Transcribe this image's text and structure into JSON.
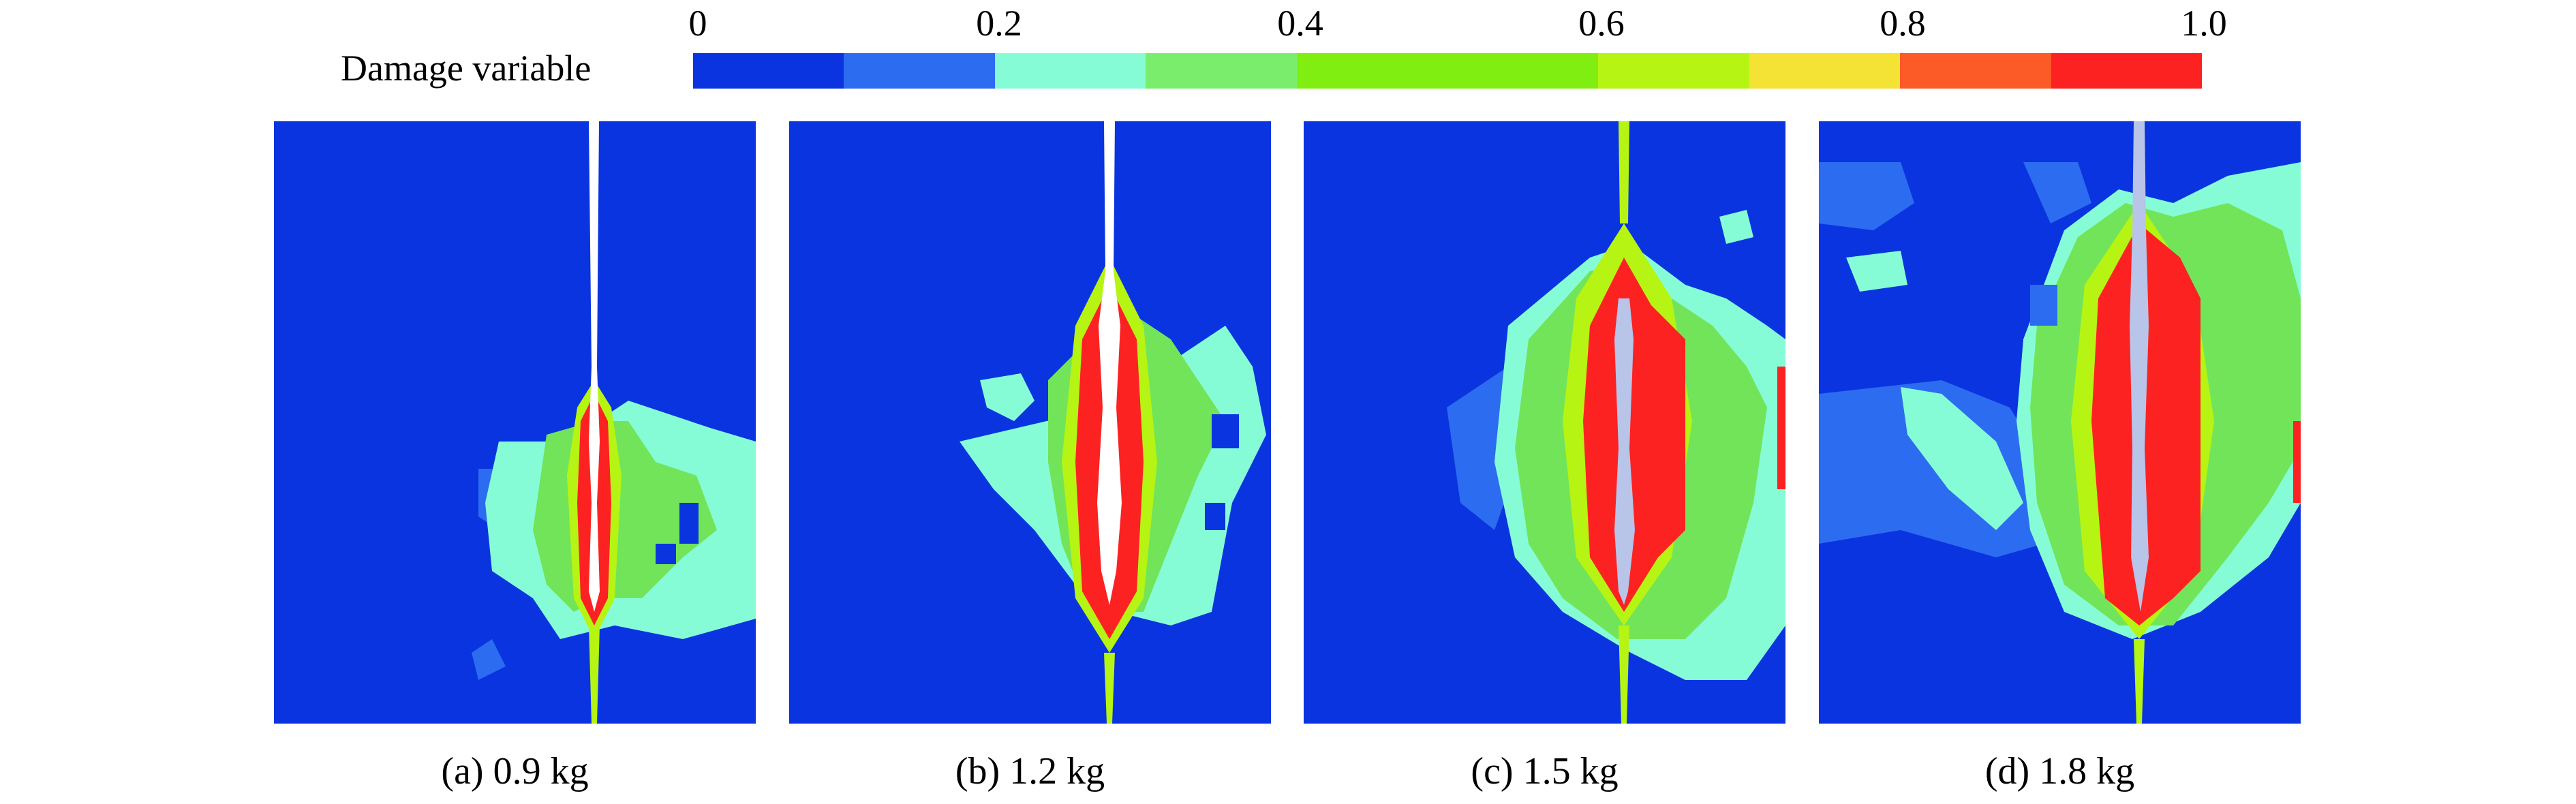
{
  "legend": {
    "title": "Damage variable",
    "ticks": [
      {
        "label": "0",
        "value": 0
      },
      {
        "label": "0.2",
        "value": 0.2
      },
      {
        "label": "0.4",
        "value": 0.4
      },
      {
        "label": "0.6",
        "value": 0.6
      },
      {
        "label": "0.8",
        "value": 0.8
      },
      {
        "label": "1.0",
        "value": 1.0
      }
    ],
    "colors": [
      "#0a34e0",
      "#2c6cf0",
      "#86fcd6",
      "#7aee6c",
      "#80ee10",
      "#80ee10",
      "#b6f414",
      "#f4e234",
      "#fc5a26",
      "#fc2222"
    ]
  },
  "panels": [
    {
      "id": "a",
      "caption": "(a) 0.9 kg"
    },
    {
      "id": "b",
      "caption": "(b) 1.2 kg"
    },
    {
      "id": "c",
      "caption": "(c) 1.5 kg"
    },
    {
      "id": "d",
      "caption": "(d) 1.8 kg"
    }
  ],
  "colors": {
    "background": "#0a34e0",
    "outer_light": "#2c6cf0",
    "cyan": "#86fcd6",
    "green": "#72e45a",
    "yellow_green": "#b6f414",
    "red": "#fc2222",
    "borehole": "#ffffff",
    "borehole_worn": "#b8c4e8"
  }
}
